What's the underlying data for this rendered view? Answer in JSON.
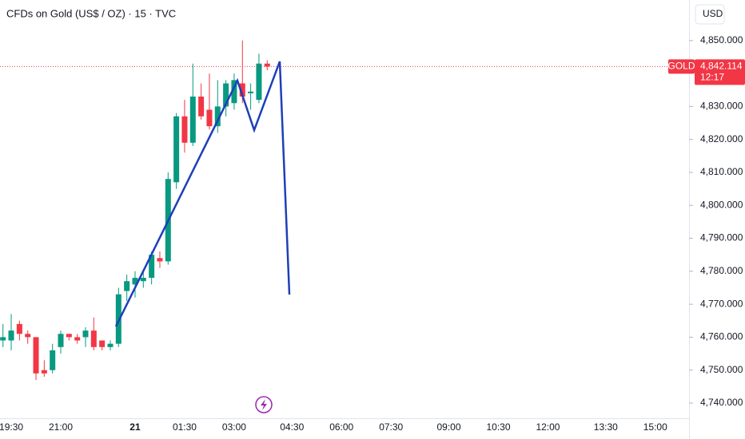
{
  "chart_data": {
    "type": "candlestick",
    "title": "CFDs on Gold (US$ / OZ) · 15 · TVC",
    "currency": "USD",
    "categories": [
      null,
      "19:30",
      null,
      null,
      null,
      null,
      null,
      "21:00",
      null,
      null,
      null,
      null,
      null,
      null,
      null,
      null,
      "21",
      null,
      null,
      null,
      null,
      null,
      "01:30",
      null,
      null,
      null,
      null,
      null,
      "03:00",
      null,
      null,
      null,
      null,
      null,
      null,
      "04:30",
      null,
      null,
      null,
      null,
      null,
      "06:00",
      null,
      null,
      null,
      null,
      null,
      "07:30",
      null,
      null,
      null,
      null,
      null,
      null,
      "09:00",
      null,
      null,
      null,
      null,
      null,
      "10:30",
      null,
      null,
      null,
      null,
      null,
      "12:00",
      null,
      null,
      null,
      null,
      null,
      null,
      "13:30",
      null,
      null,
      null,
      null,
      null,
      "15:00"
    ],
    "open": [
      4759,
      4759,
      4764,
      4761,
      4760,
      4750,
      4750,
      4757,
      4761,
      4760,
      4760,
      4762,
      4759,
      4757,
      4758,
      4774,
      4776,
      4777,
      4778,
      4784,
      4783,
      4807,
      4827,
      4819,
      4833,
      4829,
      4824,
      4830,
      4831,
      4837,
      4834,
      4832,
      4843,
      null,
      null,
      null,
      null,
      null,
      null,
      null,
      null,
      null,
      null,
      null,
      null,
      null,
      null,
      null,
      null,
      null,
      null,
      null,
      null,
      null,
      null,
      null,
      null,
      null,
      null,
      null,
      null,
      null,
      null,
      null,
      null,
      null,
      null,
      null,
      null,
      null,
      null,
      null,
      null,
      null,
      null,
      null,
      null,
      null,
      null,
      null
    ],
    "high": [
      4764,
      4767,
      4765,
      4762,
      4760,
      4753,
      4758,
      4762,
      4761,
      4761,
      4763,
      4766,
      4759,
      4759,
      4775,
      4779,
      4780,
      4780,
      4786,
      4786,
      4810,
      4828,
      4832,
      4843,
      4837,
      4840,
      4838,
      4838,
      4840,
      4850,
      4837,
      4846,
      4844,
      null,
      null,
      null,
      null,
      null,
      null,
      null,
      null,
      null,
      null,
      null,
      null,
      null,
      null,
      null,
      null,
      null,
      null,
      null,
      null,
      null,
      null,
      null,
      null,
      null,
      null,
      null,
      null,
      null,
      null,
      null,
      null,
      null,
      null,
      null,
      null,
      null,
      null,
      null,
      null,
      null,
      null,
      null,
      null,
      null,
      null,
      null
    ],
    "low": [
      4757,
      4756,
      4759,
      4758,
      4747,
      4748,
      4749,
      4755,
      4759,
      4758,
      4757,
      4756,
      4756,
      4756,
      4757,
      4771,
      4772,
      4775,
      4776,
      4781,
      4782,
      4805,
      4816,
      4818,
      4826,
      4823,
      4822,
      4827,
      4829,
      4831,
      4829,
      4831,
      4841,
      null,
      null,
      null,
      null,
      null,
      null,
      null,
      null,
      null,
      null,
      null,
      null,
      null,
      null,
      null,
      null,
      null,
      null,
      null,
      null,
      null,
      null,
      null,
      null,
      null,
      null,
      null,
      null,
      null,
      null,
      null,
      null,
      null,
      null,
      null,
      null,
      null,
      null,
      null,
      null,
      null,
      null,
      null,
      null,
      null,
      null,
      null
    ],
    "close": [
      4760,
      4762,
      4761,
      4760,
      4749,
      4749,
      4756,
      4761,
      4760,
      4759,
      4762,
      4757,
      4757,
      4758,
      4773,
      4777,
      4778,
      4778,
      4785,
      4783,
      4808,
      4827,
      4819,
      4833,
      4827,
      4824,
      4830,
      4837,
      4838,
      4833,
      4834.5,
      4843,
      4842.114,
      null,
      null,
      null,
      null,
      null,
      null,
      null,
      null,
      null,
      null,
      null,
      null,
      null,
      null,
      null,
      null,
      null,
      null,
      null,
      null,
      null,
      null,
      null,
      null,
      null,
      null,
      null,
      null,
      null,
      null,
      null,
      null,
      null,
      null,
      null,
      null,
      null,
      null,
      null,
      null,
      null,
      null,
      null,
      null,
      null,
      null,
      null
    ],
    "up_color": "#089981",
    "down_color": "#f23645",
    "ylim": [
      4735.4,
      4862.3
    ],
    "yticks": [
      {
        "value": 4740,
        "label": "4,740.000"
      },
      {
        "value": 4750,
        "label": "4,750.000"
      },
      {
        "value": 4760,
        "label": "4,760.000"
      },
      {
        "value": 4770,
        "label": "4,770.000"
      },
      {
        "value": 4780,
        "label": "4,780.000"
      },
      {
        "value": 4790,
        "label": "4,790.000"
      },
      {
        "value": 4800,
        "label": "4,800.000"
      },
      {
        "value": 4810,
        "label": "4,810.000"
      },
      {
        "value": 4820,
        "label": "4,820.000"
      },
      {
        "value": 4830,
        "label": "4,830.000"
      },
      {
        "value": 4850,
        "label": "4,850.000"
      }
    ],
    "price_line": {
      "value": 4842.114,
      "label": "4,842.114",
      "symbol": "GOLD",
      "countdown": "12:17",
      "color": "#f23645"
    }
  }
}
